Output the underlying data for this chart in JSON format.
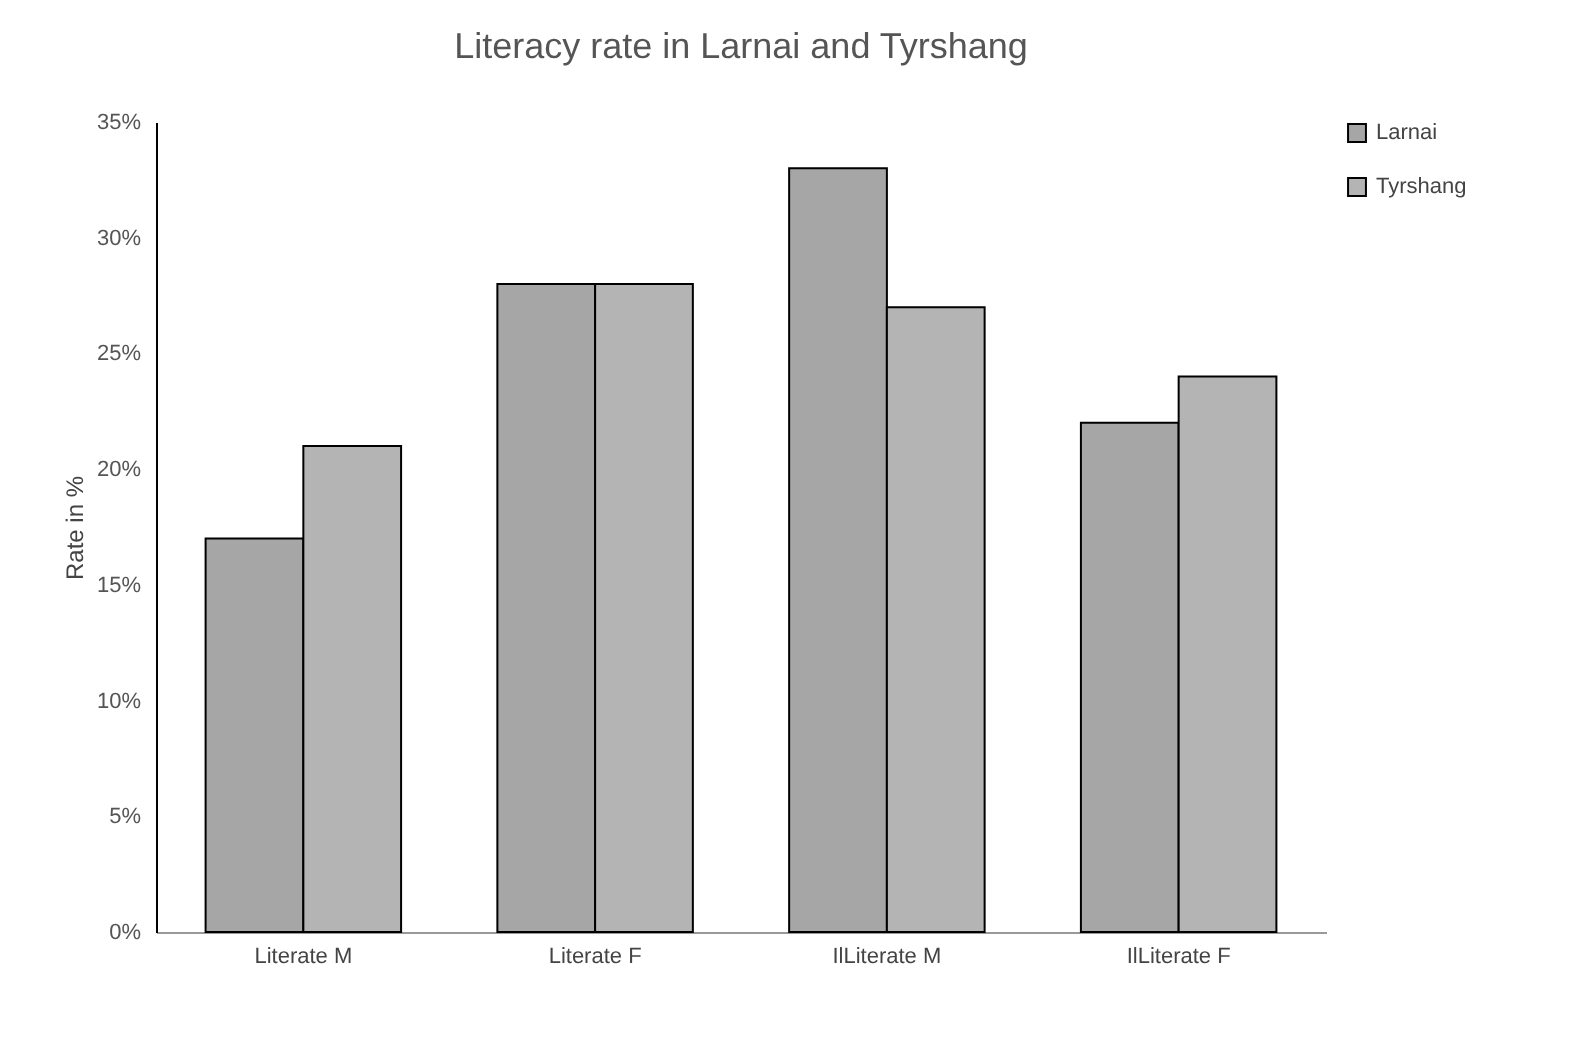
{
  "chart_data": {
    "type": "bar",
    "title": "Literacy rate in Larnai and Tyrshang",
    "ylabel": "Rate in %",
    "categories": [
      "Literate M",
      "Literate F",
      "IlLiterate M",
      "IlLiterate F"
    ],
    "series": [
      {
        "name": "Larnai",
        "color": "#a6a6a6",
        "values": [
          17,
          28,
          33,
          22
        ]
      },
      {
        "name": "Tyrshang",
        "color": "#b4b4b4",
        "values": [
          21,
          28,
          27,
          24
        ]
      }
    ],
    "ylim": [
      0,
      35
    ],
    "yticks": [
      {
        "value": 0,
        "label": "0%"
      },
      {
        "value": 5,
        "label": "5%"
      },
      {
        "value": 10,
        "label": "10%"
      },
      {
        "value": 15,
        "label": "15%"
      },
      {
        "value": 20,
        "label": "20%"
      },
      {
        "value": 25,
        "label": "25%"
      },
      {
        "value": 30,
        "label": "30%"
      },
      {
        "value": 35,
        "label": "35%"
      }
    ],
    "grid": false,
    "legend": "right"
  }
}
